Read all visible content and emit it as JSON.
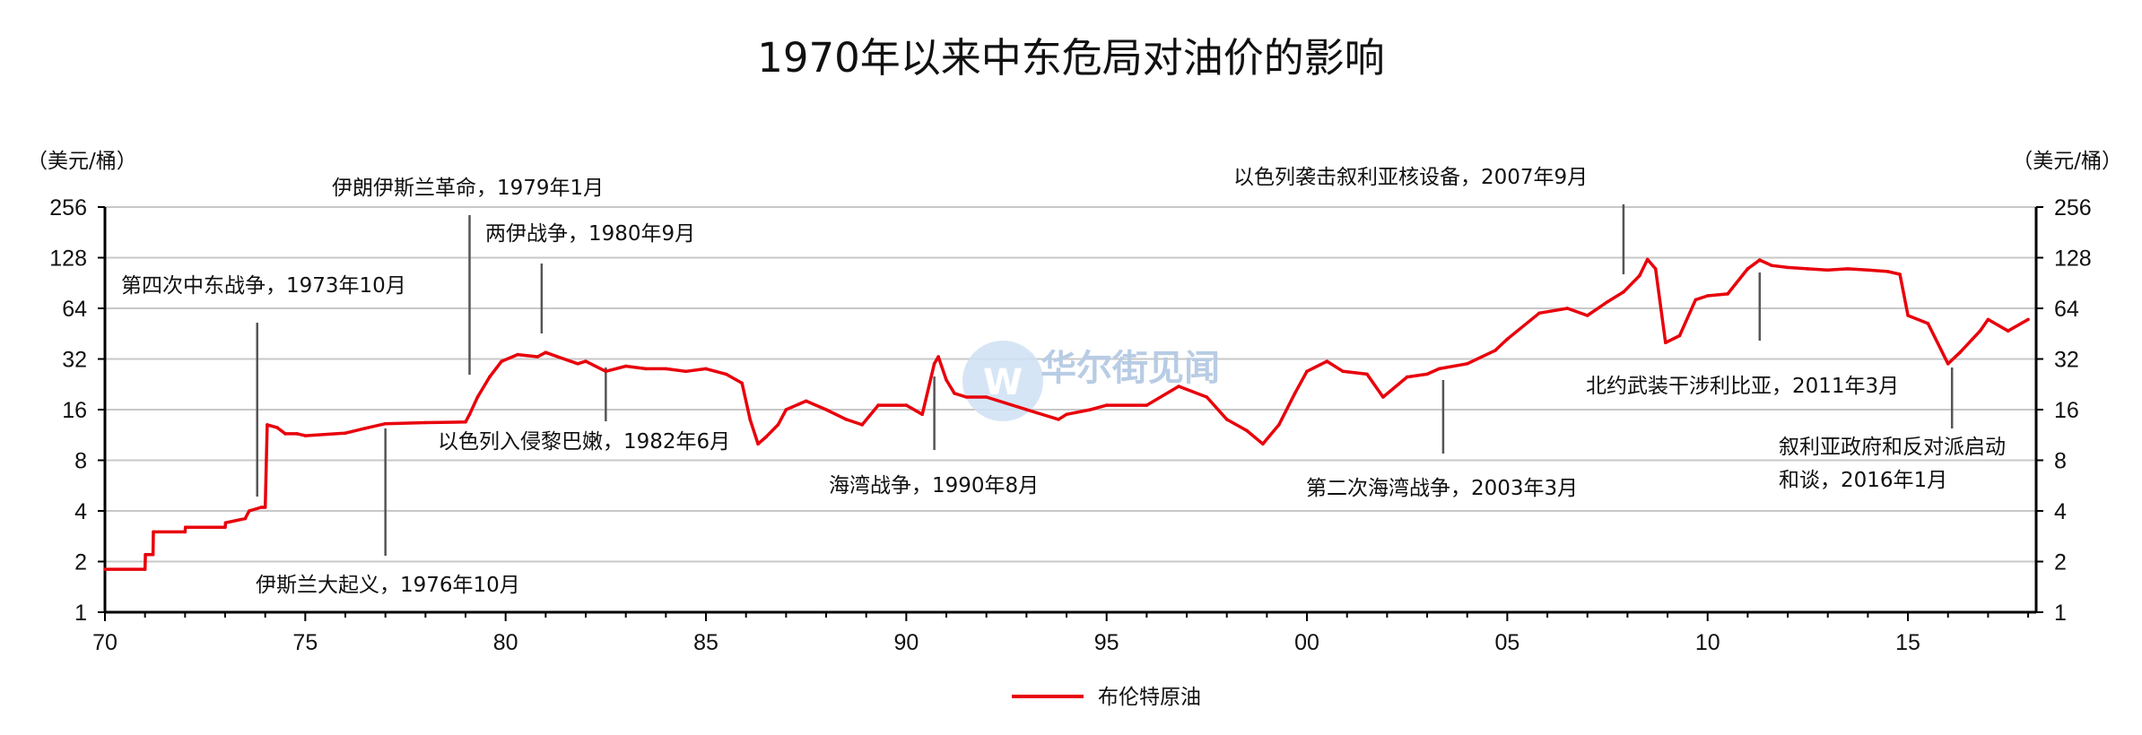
{
  "chart_data": {
    "type": "line",
    "title": "1970年以来中东危局对油价的影响",
    "y_unit_left": "（美元/桶）",
    "y_unit_right": "（美元/桶）",
    "yscale": "log2",
    "ylim": [
      1,
      256
    ],
    "yticks": [
      "1",
      "2",
      "4",
      "8",
      "16",
      "32",
      "64",
      "128",
      "256"
    ],
    "ytick_values": [
      1,
      2,
      4,
      8,
      16,
      32,
      64,
      128,
      256
    ],
    "xlim": [
      1970,
      2018.2
    ],
    "xticks": [
      "70",
      "75",
      "80",
      "85",
      "90",
      "95",
      "00",
      "05",
      "10",
      "15"
    ],
    "xtick_values": [
      1970,
      1975,
      1980,
      1985,
      1990,
      1995,
      2000,
      2005,
      2010,
      2015
    ],
    "grid": "horizontal",
    "legend_position": "bottom-center",
    "line_color": "#e8000b",
    "series": [
      {
        "name": "布伦特原油",
        "x": [
          1970.0,
          1971.0,
          1971.01,
          1971.2,
          1971.21,
          1972.0,
          1972.01,
          1973.0,
          1973.01,
          1973.5,
          1973.6,
          1973.9,
          1973.95,
          1974.0,
          1974.05,
          1974.3,
          1974.5,
          1974.8,
          1975.0,
          1976.0,
          1976.5,
          1977.0,
          1978.0,
          1979.0,
          1979.1,
          1979.3,
          1979.6,
          1979.9,
          1980.3,
          1980.8,
          1981.0,
          1981.3,
          1981.8,
          1982.0,
          1982.5,
          1983.0,
          1983.5,
          1984.0,
          1984.5,
          1985.0,
          1985.5,
          1985.9,
          1986.1,
          1986.3,
          1986.5,
          1986.8,
          1987.0,
          1987.5,
          1988.0,
          1988.5,
          1988.9,
          1989.3,
          1990.0,
          1990.4,
          1990.7,
          1990.8,
          1991.0,
          1991.2,
          1991.5,
          1992.0,
          1993.0,
          1993.8,
          1994.0,
          1994.6,
          1995.0,
          1996.0,
          1996.8,
          1997.5,
          1998.0,
          1998.5,
          1998.9,
          1999.3,
          1999.7,
          2000.0,
          2000.5,
          2000.9,
          2001.5,
          2001.9,
          2002.5,
          2003.0,
          2003.3,
          2004.0,
          2004.7,
          2005.0,
          2005.8,
          2006.5,
          2007.0,
          2007.5,
          2007.9,
          2008.3,
          2008.5,
          2008.7,
          2008.95,
          2009.3,
          2009.7,
          2010.0,
          2010.5,
          2011.0,
          2011.3,
          2011.6,
          2012.0,
          2012.5,
          2013.0,
          2013.5,
          2014.0,
          2014.5,
          2014.8,
          2015.0,
          2015.5,
          2016.0,
          2016.3,
          2016.8,
          2017.0,
          2017.5,
          2018.0
        ],
        "y": [
          1.8,
          1.8,
          2.2,
          2.2,
          3.0,
          3.0,
          3.2,
          3.2,
          3.4,
          3.6,
          4.0,
          4.2,
          4.2,
          4.2,
          13.0,
          12.5,
          11.5,
          11.5,
          11.2,
          11.6,
          12.4,
          13.2,
          13.4,
          13.5,
          15.0,
          19,
          25,
          31,
          34,
          33,
          35,
          33,
          30,
          31,
          27,
          29,
          28,
          28,
          27,
          28,
          26,
          23,
          14,
          10,
          11,
          13,
          16,
          18,
          16,
          14,
          13,
          17,
          17,
          15,
          30,
          33,
          24,
          20,
          19,
          19,
          16,
          14,
          15,
          16,
          17,
          17,
          22,
          19,
          14,
          12,
          10,
          13,
          20,
          27,
          31,
          27,
          26,
          19,
          25,
          26,
          28,
          30,
          36,
          42,
          60,
          64,
          58,
          70,
          80,
          100,
          125,
          110,
          40,
          44,
          72,
          76,
          78,
          110,
          124,
          115,
          112,
          110,
          108,
          110,
          108,
          106,
          102,
          58,
          52,
          30,
          35,
          47,
          55,
          47,
          55
        ]
      }
    ],
    "annotations": [
      {
        "text": "第四次中东战争，1973年10月",
        "x": 1973.8
      },
      {
        "text": "伊斯兰大起义，1976年10月",
        "x": 1977.0
      },
      {
        "text": "伊朗伊斯兰革命，1979年1月",
        "x": 1979.1
      },
      {
        "text": "两伊战争，1980年9月",
        "x": 1980.9
      },
      {
        "text": "以色列入侵黎巴嫩，1982年6月",
        "x": 1982.5
      },
      {
        "text": "海湾战争，1990年8月",
        "x": 1990.7
      },
      {
        "text": "第二次海湾战争，2003年3月",
        "x": 2003.4
      },
      {
        "text": "以色列袭击叙利亚核设备，2007年9月",
        "x": 2007.9
      },
      {
        "text": "北约武装干涉利比亚，2011年3月",
        "x": 2011.3
      },
      {
        "text": "叙利亚政府和反对派启动",
        "x": 2016.1
      },
      {
        "text": "和谈，2016年1月",
        "x": 2016.1
      }
    ],
    "watermark": "华尔街见闻"
  }
}
